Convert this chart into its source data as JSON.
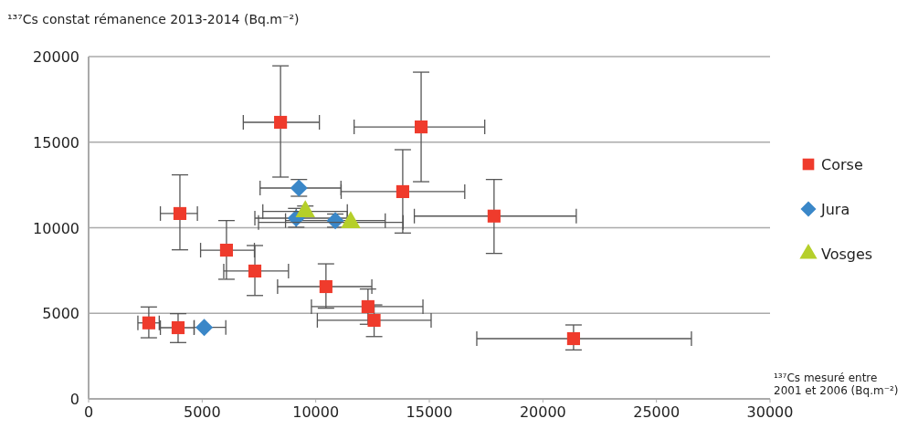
{
  "chart_data": {
    "type": "scatter",
    "ylabel": "¹³⁷Cs constat rémanence 2013-2014 (Bq.m⁻²)",
    "xlabel": "¹³⁷Cs mesuré entre 2001 et 2006 (Bq.m⁻²)",
    "xlim": [
      0,
      30000
    ],
    "ylim": [
      0,
      20000
    ],
    "xticks": [
      0,
      5000,
      10000,
      15000,
      20000,
      25000,
      30000
    ],
    "yticks": [
      0,
      5000,
      10000,
      15000,
      20000
    ],
    "grid": "y",
    "legend": "right",
    "series": [
      {
        "name": "Corse",
        "color": "#ef3b2c",
        "marker": "square",
        "x": [
          8450,
          14640,
          13830,
          4020,
          17850,
          6070,
          7320,
          10450,
          12300,
          12570,
          2650,
          3940,
          21350
        ],
        "values": [
          16160,
          15890,
          12110,
          10830,
          10680,
          8690,
          7470,
          6560,
          5390,
          4590,
          4440,
          4160,
          3520
        ],
        "errors": [
          [
            12960,
            19460
          ],
          [
            12690,
            19090
          ],
          [
            9690,
            14560
          ],
          [
            8710,
            13090
          ],
          [
            8500,
            12820
          ],
          [
            6990,
            10420
          ],
          [
            6040,
            8960
          ],
          [
            5300,
            7890
          ],
          [
            4360,
            6420
          ],
          [
            3640,
            5490
          ],
          [
            3570,
            5370
          ],
          [
            3290,
            4980
          ],
          [
            2860,
            4320
          ]
        ],
        "xerrors": [
          [
            6810,
            10160
          ],
          [
            11690,
            17440
          ],
          [
            11120,
            16560
          ],
          [
            3160,
            4790
          ],
          [
            14340,
            21470
          ],
          [
            4930,
            7300
          ],
          [
            5950,
            8800
          ],
          [
            8320,
            12470
          ],
          [
            9810,
            14720
          ],
          [
            10070,
            15080
          ],
          [
            2170,
            3110
          ],
          [
            3160,
            4640
          ],
          [
            17090,
            26540
          ]
        ]
      },
      {
        "name": "Jura",
        "color": "#3a87c8",
        "marker": "diamond",
        "x": [
          9260,
          9140,
          10860,
          5090
        ],
        "values": [
          12320,
          10560,
          10420,
          4180
        ],
        "errors": [
          [
            11840,
            12820
          ],
          [
            10030,
            11130
          ],
          [
            10030,
            10800
          ],
          null
        ],
        "xerrors": [
          [
            7550,
            11110
          ],
          [
            7320,
            11390
          ],
          [
            8670,
            13060
          ],
          [
            4650,
            6040
          ]
        ]
      },
      {
        "name": "Vosges",
        "color": "#b5cf2a",
        "marker": "triangle",
        "x": [
          9540,
          11540
        ],
        "values": [
          10950,
          10310
        ],
        "errors": [
          [
            10690,
            11270
          ],
          null
        ],
        "xerrors": [
          [
            7670,
            11390
          ],
          [
            7480,
            13850
          ]
        ]
      }
    ]
  }
}
